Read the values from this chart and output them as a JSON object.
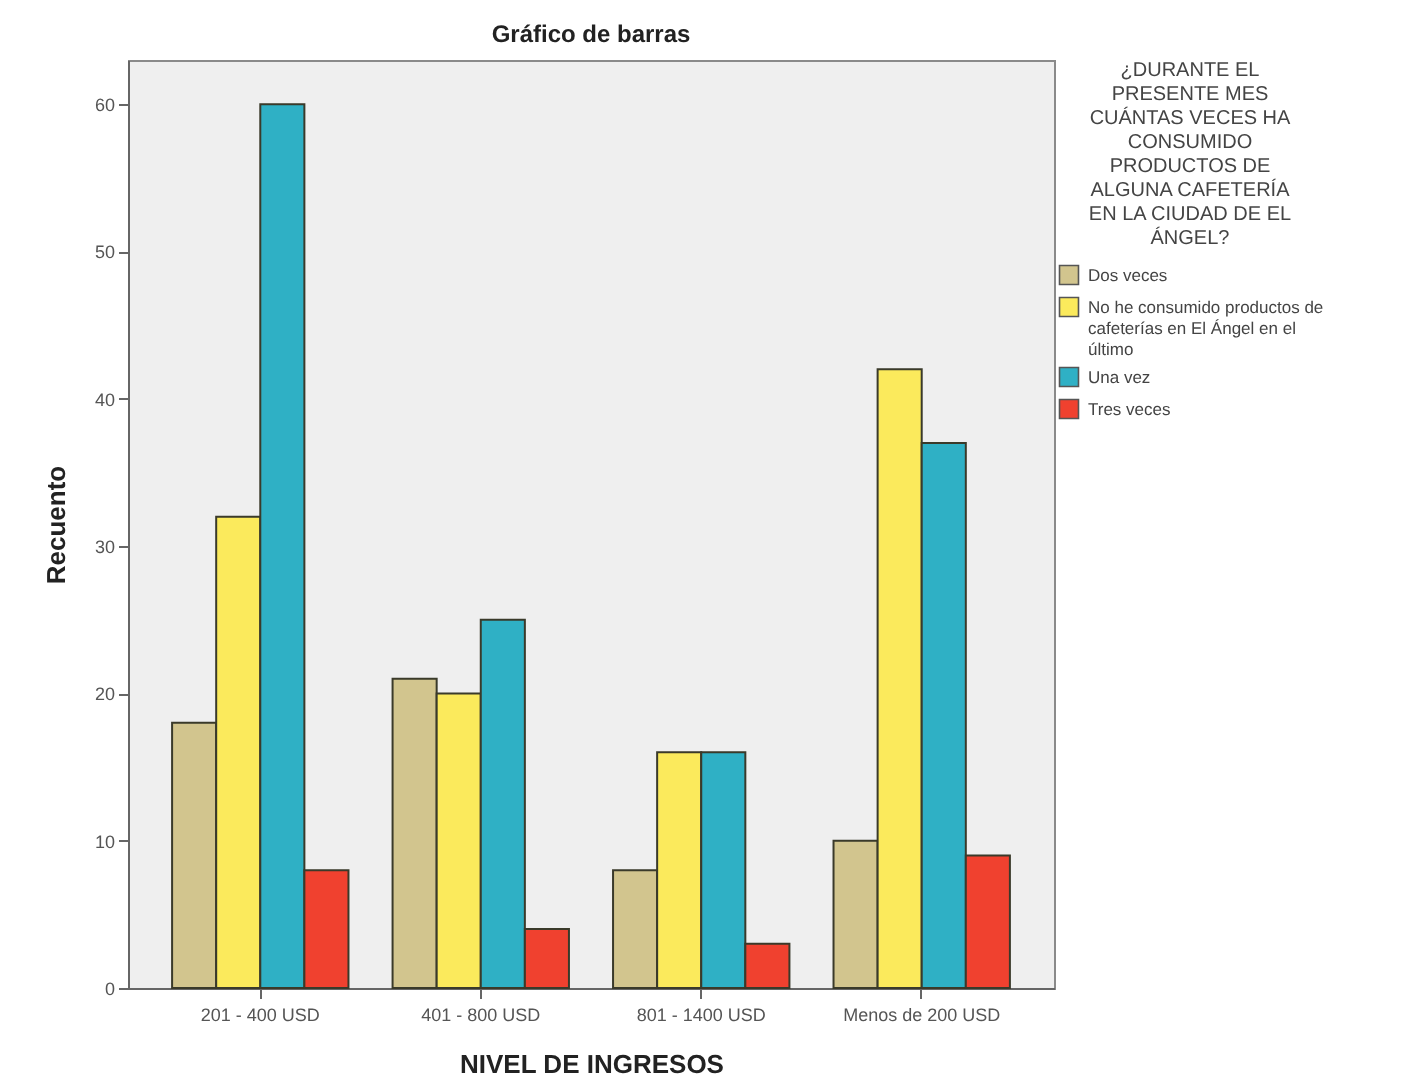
{
  "chart_data": {
    "type": "bar",
    "title": "Gráfico de barras",
    "xlabel": "NIVEL DE INGRESOS",
    "ylabel": "Recuento",
    "legend_title": "¿DURANTE EL PRESENTE MES CUÁNTAS VECES HA CONSUMIDO PRODUCTOS DE ALGUNA CAFETERÍA EN LA CIUDAD DE EL ÁNGEL?",
    "categories": [
      "201 - 400 USD",
      "401 - 800 USD",
      "801 - 1400 USD",
      "Menos de 200 USD"
    ],
    "series": [
      {
        "name": "Dos veces",
        "color": "#d2c58e",
        "values": [
          18,
          21,
          8,
          10
        ]
      },
      {
        "name": "No he consumido productos de cafeterías en El Ángel en el último",
        "color": "#fbea5c",
        "values": [
          32,
          20,
          16,
          42
        ]
      },
      {
        "name": "Una vez",
        "color": "#2fb0c5",
        "values": [
          60,
          25,
          16,
          37
        ]
      },
      {
        "name": "Tres veces",
        "color": "#f0412f",
        "values": [
          8,
          4,
          3,
          9
        ]
      }
    ],
    "ylim": [
      0,
      63
    ],
    "yticks": [
      0,
      10,
      20,
      30,
      40,
      50,
      60
    ],
    "grid": false,
    "legend": "right"
  }
}
